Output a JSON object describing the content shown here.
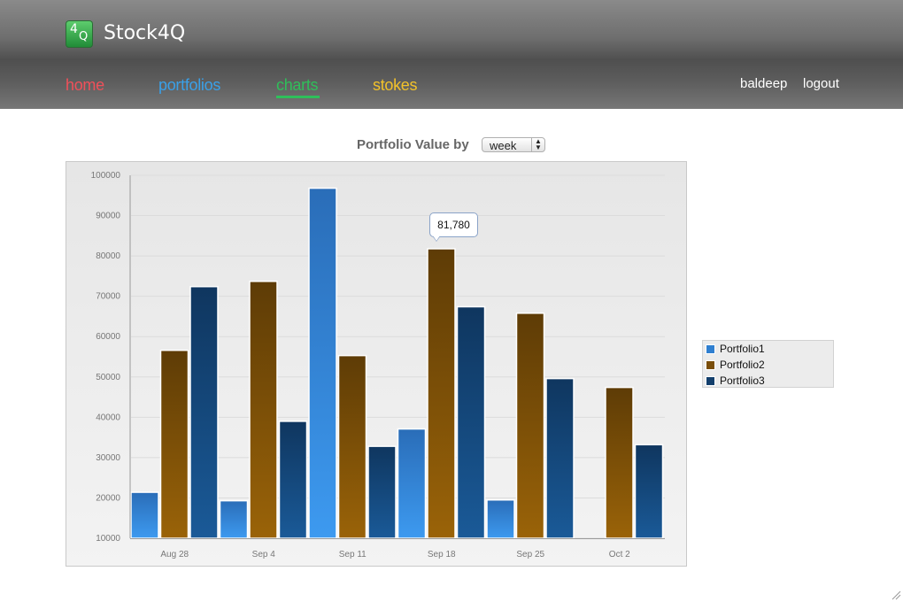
{
  "app": {
    "title": "Stock4Q",
    "logo": {
      "top_glyph": "4",
      "bottom_glyph": "Q"
    }
  },
  "nav": {
    "items": [
      {
        "label": "home",
        "color": "#f0505a"
      },
      {
        "label": "portfolios",
        "color": "#3aa0e8"
      },
      {
        "label": "charts",
        "color": "#2fbf5a",
        "active": true
      },
      {
        "label": "stokes",
        "color": "#f2c22a"
      }
    ]
  },
  "user": {
    "name": "baldeep",
    "logout_label": "logout"
  },
  "chart_header": {
    "label": "Portfolio Value by",
    "period_selected": "week"
  },
  "tooltip": {
    "value_text": "81,780"
  },
  "colors": {
    "portfolio1": "#2f7fd0",
    "portfolio2": "#7a4e0a",
    "portfolio3": "#133f6c"
  },
  "chart_data": {
    "type": "bar",
    "categories": [
      "Aug 28",
      "Sep 4",
      "Sep 11",
      "Sep 18",
      "Sep 25",
      "Oct 2"
    ],
    "series": [
      {
        "name": "Portfolio1",
        "values": [
          21400,
          19300,
          96800,
          37100,
          19500,
          10000
        ]
      },
      {
        "name": "Portfolio2",
        "values": [
          56600,
          73700,
          55300,
          81780,
          65800,
          47400
        ]
      },
      {
        "name": "Portfolio3",
        "values": [
          72400,
          39000,
          32800,
          67400,
          49600,
          33200
        ]
      }
    ],
    "ylim": [
      10000,
      100000
    ],
    "yticks": [
      "100000",
      "90000",
      "80000",
      "70000",
      "60000",
      "50000",
      "40000",
      "30000",
      "20000",
      "10000"
    ],
    "grid": true,
    "legend": "right"
  }
}
